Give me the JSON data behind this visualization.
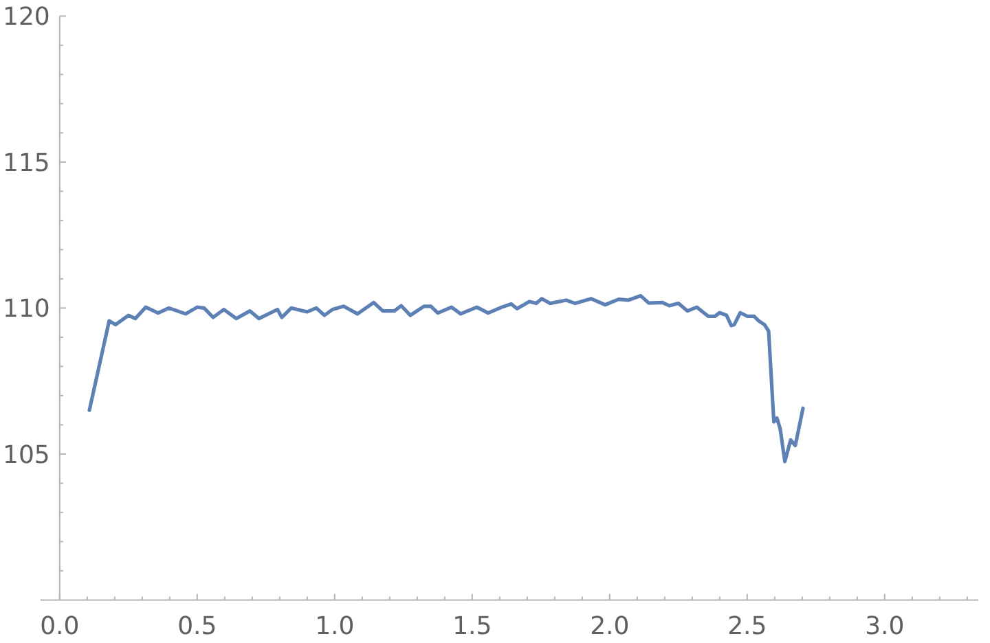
{
  "chart_data": {
    "type": "line",
    "color": "#5e81b5",
    "line_style": "solid",
    "x": [
      0.108,
      0.18,
      0.203,
      0.25,
      0.275,
      0.313,
      0.358,
      0.397,
      0.458,
      0.5,
      0.525,
      0.558,
      0.597,
      0.642,
      0.692,
      0.725,
      0.792,
      0.808,
      0.842,
      0.9,
      0.933,
      0.963,
      0.992,
      1.033,
      1.083,
      1.142,
      1.175,
      1.217,
      1.242,
      1.275,
      1.325,
      1.35,
      1.375,
      1.425,
      1.458,
      1.517,
      1.558,
      1.608,
      1.642,
      1.663,
      1.708,
      1.733,
      1.753,
      1.783,
      1.842,
      1.875,
      1.933,
      1.983,
      2.033,
      2.067,
      2.113,
      2.142,
      2.192,
      2.217,
      2.25,
      2.283,
      2.317,
      2.358,
      2.383,
      2.4,
      2.425,
      2.442,
      2.453,
      2.475,
      2.5,
      2.525,
      2.542,
      2.563,
      2.578,
      2.597,
      2.608,
      2.62,
      2.637,
      2.658,
      2.675,
      2.703
    ],
    "values": [
      106.5,
      109.56,
      109.43,
      109.75,
      109.64,
      110.03,
      109.83,
      110.0,
      109.8,
      110.03,
      110.0,
      109.68,
      109.95,
      109.64,
      109.9,
      109.64,
      109.95,
      109.68,
      110.0,
      109.87,
      110.0,
      109.75,
      109.95,
      110.06,
      109.8,
      110.19,
      109.9,
      109.9,
      110.08,
      109.75,
      110.06,
      110.06,
      109.83,
      110.03,
      109.8,
      110.03,
      109.83,
      110.03,
      110.14,
      109.98,
      110.22,
      110.16,
      110.32,
      110.16,
      110.27,
      110.16,
      110.32,
      110.11,
      110.3,
      110.27,
      110.42,
      110.17,
      110.19,
      110.08,
      110.16,
      109.9,
      110.03,
      109.72,
      109.72,
      109.84,
      109.75,
      109.4,
      109.43,
      109.84,
      109.72,
      109.72,
      109.56,
      109.43,
      109.21,
      106.1,
      106.23,
      105.87,
      104.74,
      105.48,
      105.29,
      106.57
    ],
    "xlim": [
      -0.07,
      3.34
    ],
    "ylim": [
      100,
      120
    ],
    "xticks": [
      {
        "value": 0,
        "label": "0.0"
      },
      {
        "value": 0.1,
        "label": null
      },
      {
        "value": 0.2,
        "label": null
      },
      {
        "value": 0.3,
        "label": null
      },
      {
        "value": 0.4,
        "label": null
      },
      {
        "value": 0.5,
        "label": "0.5"
      },
      {
        "value": 0.6,
        "label": null
      },
      {
        "value": 0.7,
        "label": null
      },
      {
        "value": 0.8,
        "label": null
      },
      {
        "value": 0.9,
        "label": null
      },
      {
        "value": 1,
        "label": "1.0"
      },
      {
        "value": 1.1,
        "label": null
      },
      {
        "value": 1.2,
        "label": null
      },
      {
        "value": 1.3,
        "label": null
      },
      {
        "value": 1.4,
        "label": null
      },
      {
        "value": 1.5,
        "label": "1.5"
      },
      {
        "value": 1.6,
        "label": null
      },
      {
        "value": 1.7,
        "label": null
      },
      {
        "value": 1.8,
        "label": null
      },
      {
        "value": 1.9,
        "label": null
      },
      {
        "value": 2,
        "label": "2.0"
      },
      {
        "value": 2.1,
        "label": null
      },
      {
        "value": 2.2,
        "label": null
      },
      {
        "value": 2.3,
        "label": null
      },
      {
        "value": 2.4,
        "label": null
      },
      {
        "value": 2.5,
        "label": "2.5"
      },
      {
        "value": 2.6,
        "label": null
      },
      {
        "value": 2.7,
        "label": null
      },
      {
        "value": 2.8,
        "label": null
      },
      {
        "value": 2.9,
        "label": null
      },
      {
        "value": 3,
        "label": "3.0"
      },
      {
        "value": 3.1,
        "label": null
      },
      {
        "value": 3.2,
        "label": null
      },
      {
        "value": 3.3,
        "label": null
      }
    ],
    "yticks": [
      {
        "value": 101,
        "label": null
      },
      {
        "value": 102,
        "label": null
      },
      {
        "value": 103,
        "label": null
      },
      {
        "value": 104,
        "label": null
      },
      105,
      {
        "value": 106,
        "label": null
      },
      {
        "value": 107,
        "label": null
      },
      {
        "value": 108,
        "label": null
      },
      {
        "value": 109,
        "label": null
      },
      110,
      {
        "value": 111,
        "label": null
      },
      {
        "value": 112,
        "label": null
      },
      {
        "value": 113,
        "label": null
      },
      {
        "value": 114,
        "label": null
      },
      115,
      {
        "value": 116,
        "label": null
      },
      {
        "value": 117,
        "label": null
      },
      {
        "value": 118,
        "label": null
      },
      {
        "value": 119,
        "label": null
      },
      120
    ]
  }
}
